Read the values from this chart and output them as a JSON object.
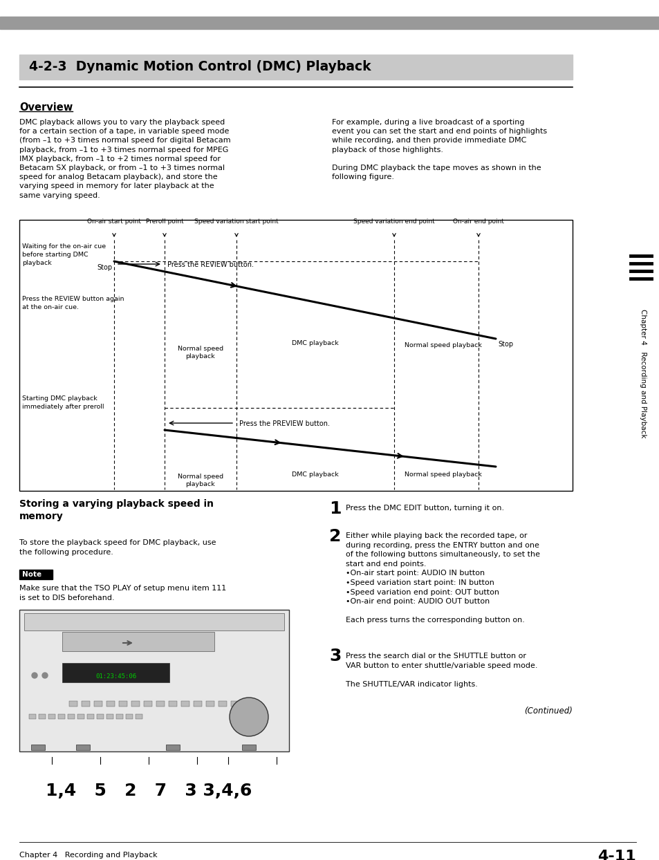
{
  "page_bg": "#ffffff",
  "top_bar_color": "#aaaaaa",
  "header_bg": "#cccccc",
  "header_text": "4-2-3  Dynamic Motion Control (DMC) Playback",
  "section_title1": "Overview",
  "overview_left": "DMC playback allows you to vary the playback speed\nfor a certain section of a tape, in variable speed mode\n(from –1 to +3 times normal speed for digital Betacam\nplayback, from –1 to +3 times normal speed for MPEG\nIMX playback, from –1 to +2 times normal speed for\nBetacam SX playback, or from –1 to +3 times normal\nspeed for analog Betacam playback), and store the\nvarying speed in memory for later playback at the\nsame varying speed.",
  "overview_right": "For example, during a live broadcast of a sporting\nevent you can set the start and end points of highlights\nwhile recording, and then provide immediate DMC\nplayback of those highlights.\n\nDuring DMC playback the tape moves as shown in the\nfollowing figure.",
  "section_title2": "Storing a varying playback speed in\nmemory",
  "storing_text": "To store the playback speed for DMC playback, use\nthe following procedure.",
  "note_label": "Note",
  "note_text": "Make sure that the TSO PLAY of setup menu item 111\nis set to DIS beforehand.",
  "steps_text1": "Press the DMC EDIT button, turning it on.",
  "steps_text2": "Either while playing back the recorded tape, or\nduring recording, press the ENTRY button and one\nof the following buttons simultaneously, to set the\nstart and end points.\n•On-air start point: AUDIO IN button\n•Speed variation start point: IN button\n•Speed variation end point: OUT button\n•On-air end point: AUDIO OUT button\n\nEach press turns the corresponding button on.",
  "steps_text3": "Press the search dial or the SHUTTLE button or\nVAR button to enter shuttle/variable speed mode.\n\nThe SHUTTLE/VAR indicator lights.",
  "continued": "(Continued)",
  "footer": "Chapter 4   Recording and Playback",
  "footer_page": "4-11",
  "sidebar_text": "Chapter 4   Recording and Playback",
  "diag_top_labels": [
    "On-air start point",
    "Preroll point",
    "Speed variation start point",
    "Speed variation end point",
    "On-air end point"
  ],
  "diag_left1": "Waiting for the on-air cue\nbefore starting DMC\nplayback",
  "diag_left2": "Press the REVIEW button again\nat the on-air cue.",
  "diag_left3": "Starting DMC playback\nimmediately after preroll",
  "diag_review": "Press the REVIEW button.",
  "diag_preview": "Press the PREVIEW button.",
  "diag_stop1": "Stop",
  "diag_stop2": "Stop",
  "diag_normal1a": "Normal speed\nplayback",
  "diag_dmc1": "DMC playback",
  "diag_normal1b": "Normal speed playback",
  "diag_normal2a": "Normal speed\nplayback",
  "diag_dmc2": "DMC playback",
  "diag_normal2b": "Normal speed playback",
  "fig_numbers": "1,4   5   2   7   3 3,4,6"
}
